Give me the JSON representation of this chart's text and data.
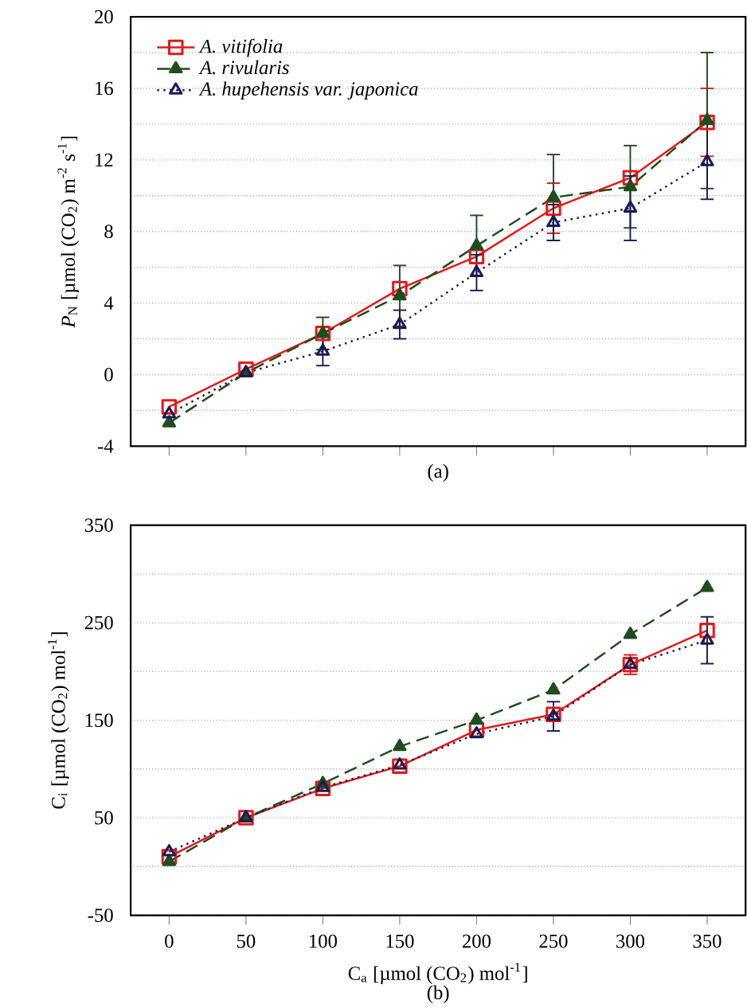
{
  "chart_data": [
    {
      "type": "line",
      "ylabel": "*P*$_{N}$ [µmol (CO$_{2}$) m$^{-2}$ s$^{-1}$]",
      "annotations": [
        "(a)"
      ],
      "x": [
        0,
        50,
        100,
        150,
        200,
        250,
        300,
        350
      ],
      "xlim": [
        -25,
        375
      ],
      "xticks": [
        0,
        50,
        100,
        150,
        200,
        250,
        300,
        350
      ],
      "tick_labels": "y",
      "ylim": [
        -4,
        20
      ],
      "yticks": [
        -4,
        {
          "value": -2,
          "label": null
        },
        0,
        {
          "value": 2,
          "label": null
        },
        4,
        {
          "value": 6,
          "label": null
        },
        8,
        {
          "value": 10,
          "label": null
        },
        12,
        {
          "value": 14,
          "label": null
        },
        16,
        {
          "value": 18,
          "label": null
        },
        20
      ],
      "grid": "y",
      "legend": "top left",
      "series": [
        {
          "name": "A. vitifolia",
          "color": "#e31a1a",
          "marker": "square",
          "line_style": "solid",
          "values": [
            -1.8,
            0.3,
            2.3,
            4.8,
            6.6,
            9.3,
            11.0,
            14.1
          ],
          "errors": [
            null,
            null,
            null,
            null,
            null,
            1.4,
            null,
            1.9
          ]
        },
        {
          "name": "A. rivularis",
          "color": "#1e4d1e",
          "marker": "triangle",
          "line_style": "dashed",
          "values": [
            -2.7,
            0.1,
            2.3,
            4.4,
            7.2,
            9.9,
            10.5,
            14.2
          ],
          "errors": [
            null,
            null,
            0.9,
            1.7,
            1.7,
            2.4,
            2.3,
            3.8
          ]
        },
        {
          "name": "A. hupehensis var. japonica",
          "color": "#1a1a55",
          "marker": "triangle",
          "line_style": "dotted",
          "values": [
            -2.2,
            0.1,
            1.3,
            2.8,
            5.7,
            8.5,
            9.3,
            11.9
          ],
          "errors": [
            null,
            null,
            0.8,
            0.8,
            1.0,
            1.0,
            1.8,
            2.1
          ]
        }
      ]
    },
    {
      "type": "line",
      "ylabel": "C$_{i}$ [µmol (CO$_{2}$) mol$^{-1}$]",
      "xlabel": "C$_{a}$ [µmol (CO$_{2}$) mol$^{-1}$]",
      "annotations": [
        "(b)"
      ],
      "x": [
        0,
        50,
        100,
        150,
        200,
        250,
        300,
        350
      ],
      "xlim": [
        -25,
        375
      ],
      "xticks": [
        0,
        50,
        100,
        150,
        200,
        250,
        300,
        350
      ],
      "ylim": [
        -50,
        350
      ],
      "yticks": [
        -50,
        {
          "value": 0,
          "label": null
        },
        50,
        {
          "value": 100,
          "label": null
        },
        150,
        {
          "value": 200,
          "label": null
        },
        250,
        {
          "value": 300,
          "label": null
        },
        350
      ],
      "grid": "y",
      "series": [
        {
          "color": "#e31a1a",
          "marker": "square",
          "line_style": "solid",
          "values": [
            10,
            50,
            80,
            103,
            140,
            156,
            207,
            242
          ],
          "errors": [
            null,
            null,
            null,
            null,
            null,
            null,
            10,
            null
          ]
        },
        {
          "color": "#1e4d1e",
          "marker": "triangle",
          "line_style": "dashed",
          "values": [
            5,
            50,
            85,
            123,
            150,
            181,
            238,
            286
          ]
        },
        {
          "color": "#1a1a55",
          "marker": "triangle",
          "line_style": "dotted",
          "values": [
            15,
            50,
            81,
            104,
            136,
            154,
            207,
            232
          ],
          "errors": [
            null,
            null,
            null,
            null,
            null,
            15,
            null,
            24
          ]
        }
      ]
    }
  ]
}
